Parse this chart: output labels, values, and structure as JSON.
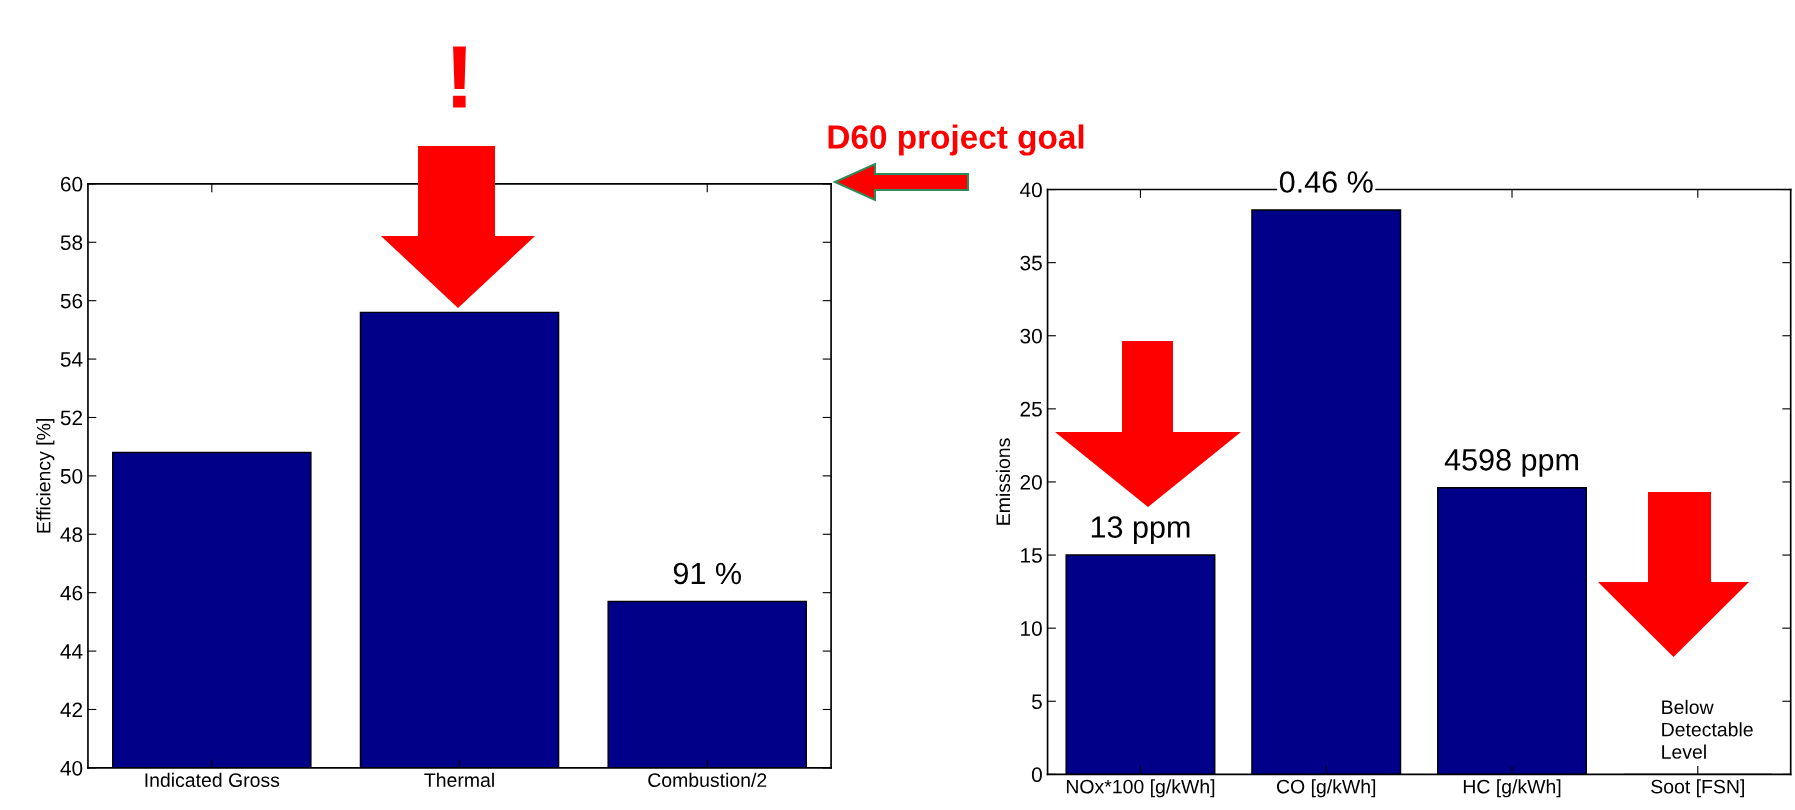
{
  "chart_data": [
    {
      "type": "bar",
      "ylabel": "Efficiency [%]",
      "categories": [
        "Indicated Gross",
        "Thermal",
        "Combustion/2"
      ],
      "values": [
        50.8,
        55.6,
        45.7
      ],
      "color": "#000088",
      "ylim": [
        40,
        60
      ],
      "yticks": [
        40,
        42,
        44,
        46,
        48,
        50,
        52,
        54,
        56,
        58,
        60
      ],
      "grid": false,
      "legend": false,
      "annotations": [
        {
          "text": "91 %",
          "x": "Combustion/2",
          "y": 45.7
        },
        {
          "text": "!",
          "x": "Thermal",
          "y": 55.6
        },
        "D60 project goal"
      ]
    },
    {
      "type": "bar",
      "ylabel": "Emissions",
      "categories": [
        "NOx*100 [g/kWh]",
        "CO [g/kWh]",
        "HC [g/kWh]",
        "Soot [FSN]"
      ],
      "values": [
        15.0,
        38.6,
        19.6,
        0
      ],
      "color": "#000088",
      "ylim": [
        0,
        40
      ],
      "yticks": [
        0,
        5,
        10,
        15,
        20,
        25,
        30,
        35,
        40
      ],
      "grid": false,
      "legend": false,
      "annotations": [
        {
          "text": "13 ppm",
          "x": "NOx*100 [g/kWh]",
          "y": 15.0
        },
        {
          "text": "0.46 %",
          "x": "CO [g/kWh]",
          "y": 38.6
        },
        {
          "text": "4598 ppm",
          "x": "HC [g/kWh]",
          "y": 19.6
        },
        {
          "text": "Below\nDetectable\nLevel",
          "x": "Soot [FSN]",
          "y": 0
        }
      ]
    }
  ]
}
